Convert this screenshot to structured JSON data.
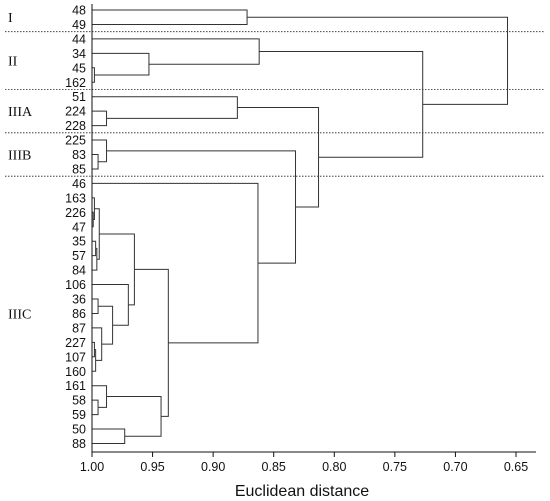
{
  "chart_data": {
    "type": "dendrogram",
    "xlabel": "Euclidean distance",
    "xlim": [
      1.0,
      0.65
    ],
    "x_ticks": [
      "1.00",
      "0.95",
      "0.90",
      "0.85",
      "0.80",
      "0.75",
      "0.70",
      "0.65"
    ],
    "x_tick_values": [
      1.0,
      0.95,
      0.9,
      0.85,
      0.8,
      0.75,
      0.7,
      0.65
    ],
    "leaves": [
      "48",
      "49",
      "44",
      "34",
      "45",
      "162",
      "51",
      "224",
      "228",
      "225",
      "83",
      "85",
      "46",
      "163",
      "226",
      "47",
      "35",
      "57",
      "84",
      "106",
      "36",
      "86",
      "87",
      "227",
      "107",
      "160",
      "161",
      "58",
      "59",
      "50",
      "88"
    ],
    "groups": [
      {
        "label": "I",
        "first_leaf": 0,
        "last_leaf": 1
      },
      {
        "label": "II",
        "first_leaf": 2,
        "last_leaf": 5
      },
      {
        "label": "IIIA",
        "first_leaf": 6,
        "last_leaf": 8
      },
      {
        "label": "IIIB",
        "first_leaf": 9,
        "last_leaf": 11
      },
      {
        "label": "IIIC",
        "first_leaf": 12,
        "last_leaf": 30
      }
    ],
    "merges": [
      {
        "id": "I",
        "children": [
          0,
          1
        ],
        "height": 0.872
      },
      {
        "id": "a1",
        "children": [
          4,
          5
        ],
        "height": 0.998
      },
      {
        "id": "a2",
        "children": [
          3,
          "a1"
        ],
        "height": 0.953
      },
      {
        "id": "II",
        "children": [
          2,
          "a2"
        ],
        "height": 0.862
      },
      {
        "id": "b1",
        "children": [
          7,
          8
        ],
        "height": 0.988
      },
      {
        "id": "IIIA",
        "children": [
          6,
          "b1"
        ],
        "height": 0.88
      },
      {
        "id": "c1",
        "children": [
          10,
          11
        ],
        "height": 0.995
      },
      {
        "id": "IIIB",
        "children": [
          9,
          "c1"
        ],
        "height": 0.988
      },
      {
        "id": "d1",
        "children": [
          14,
          15
        ],
        "height": 0.999
      },
      {
        "id": "d2",
        "children": [
          13,
          "d1"
        ],
        "height": 0.998
      },
      {
        "id": "d3",
        "children": [
          16,
          17
        ],
        "height": 0.997
      },
      {
        "id": "d4",
        "children": [
          "d3",
          18
        ],
        "height": 0.996
      },
      {
        "id": "d5",
        "children": [
          "d2",
          "d4"
        ],
        "height": 0.994
      },
      {
        "id": "d6",
        "children": [
          20,
          21
        ],
        "height": 0.995
      },
      {
        "id": "d7",
        "children": [
          23,
          24
        ],
        "height": 0.998
      },
      {
        "id": "d8",
        "children": [
          "d7",
          25
        ],
        "height": 0.997
      },
      {
        "id": "d9",
        "children": [
          22,
          "d8"
        ],
        "height": 0.992
      },
      {
        "id": "d10",
        "children": [
          "d6",
          "d9"
        ],
        "height": 0.983
      },
      {
        "id": "d11",
        "children": [
          19,
          "d10"
        ],
        "height": 0.97
      },
      {
        "id": "d12",
        "children": [
          "d5",
          "d11"
        ],
        "height": 0.965
      },
      {
        "id": "d13",
        "children": [
          27,
          28
        ],
        "height": 0.995
      },
      {
        "id": "d14",
        "children": [
          26,
          "d13"
        ],
        "height": 0.988
      },
      {
        "id": "d15",
        "children": [
          29,
          30
        ],
        "height": 0.973
      },
      {
        "id": "d16",
        "children": [
          "d14",
          "d15"
        ],
        "height": 0.943
      },
      {
        "id": "d17",
        "children": [
          "d12",
          "d16"
        ],
        "height": 0.937
      },
      {
        "id": "IIIC",
        "children": [
          12,
          "d17"
        ],
        "height": 0.863
      },
      {
        "id": "e1",
        "children": [
          "IIIB",
          "IIIC"
        ],
        "height": 0.832
      },
      {
        "id": "e2",
        "children": [
          "IIIA",
          "e1"
        ],
        "height": 0.813
      },
      {
        "id": "e3",
        "children": [
          "II",
          "e2"
        ],
        "height": 0.727
      },
      {
        "id": "root",
        "children": [
          "I",
          "e3"
        ],
        "height": 0.657
      }
    ]
  }
}
